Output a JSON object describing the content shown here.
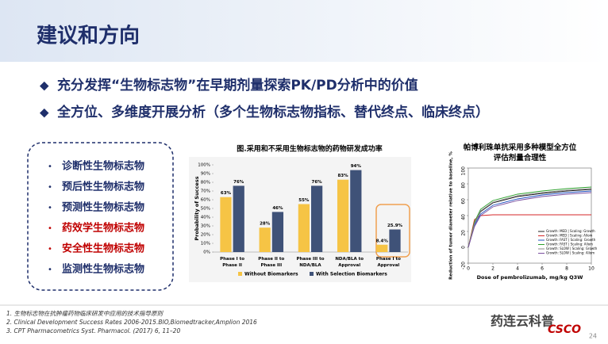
{
  "header": {
    "title": "建议和方向"
  },
  "bullets": [
    "充分发挥“生物标志物”在早期剂量探索PK/PD分析中的价值",
    "全方位、多维度开展分析（多个生物标志物指标、替代终点、临床终点）"
  ],
  "list": {
    "items": [
      {
        "text": "诊断性生物标志物",
        "color": "#1f2f6b"
      },
      {
        "text": "预后性生物标志物",
        "color": "#1f2f6b"
      },
      {
        "text": "预测性生物标志物",
        "color": "#1f2f6b"
      },
      {
        "text": "药效学生物标志物",
        "color": "#c00000"
      },
      {
        "text": "安全性生物标志物",
        "color": "#c00000"
      },
      {
        "text": "监测性生物标志物",
        "color": "#1f2f6b"
      }
    ]
  },
  "chart_data": [
    {
      "type": "bar",
      "title": "图.采用和不采用生物标志物的药物研发成功率",
      "y_label": "Probability of Success",
      "categories": [
        "Phase I to Phase II",
        "Phase II to Phase III",
        "Phase III to NDA/BLA",
        "NDA/BLA to Approval",
        "Phase I to Approval"
      ],
      "series": [
        {
          "name": "Without Biomarkers",
          "color": "#f6c445",
          "values": [
            63,
            28,
            55,
            83,
            8.4
          ],
          "value_labels": [
            "63%",
            "28%",
            "55%",
            "83%",
            "8.4%"
          ]
        },
        {
          "name": "With Selection Biomarkers",
          "color": "#3f5278",
          "values": [
            76,
            46,
            76,
            94,
            25.9
          ],
          "value_labels": [
            "76%",
            "46%",
            "76%",
            "94%",
            "25.9%"
          ]
        }
      ],
      "ylim": [
        0,
        100
      ],
      "yticks": [
        {
          "value": 0,
          "label": "0%"
        },
        {
          "value": 10,
          "label": "10%"
        },
        {
          "value": 20,
          "label": "20%"
        },
        {
          "value": 30,
          "label": "30%"
        },
        {
          "value": 40,
          "label": "40%"
        },
        {
          "value": 50,
          "label": "50%"
        },
        {
          "value": 60,
          "label": "60%"
        },
        {
          "value": 70,
          "label": "70%"
        },
        {
          "value": 80,
          "label": "80%"
        },
        {
          "value": 90,
          "label": "90%"
        },
        {
          "value": 100,
          "label": "100%"
        }
      ]
    },
    {
      "type": "line",
      "title": "帕博利珠单抗采用多种模型全方位评估剂量合理性",
      "x_label": "Dose of pembrolizumab, mg/kg Q3W",
      "y_label": "Reduction of tumor diameter relative to baseline, %",
      "x": [
        0,
        0.5,
        1,
        2,
        4,
        6,
        8,
        10
      ],
      "series": [
        {
          "name": "Growth: MED | Scaling: Growth",
          "color": "#222222",
          "values": [
            0,
            30,
            45,
            56,
            64,
            68,
            71,
            73
          ]
        },
        {
          "name": "Growth: MED | Scaling: Allom",
          "color": "#d62728",
          "values": [
            0,
            35,
            40,
            41,
            41,
            41,
            41,
            41
          ]
        },
        {
          "name": "Growth: FAST | Scaling: Growth",
          "color": "#1f4fbf",
          "values": [
            0,
            28,
            42,
            53,
            61,
            66,
            69,
            71
          ]
        },
        {
          "name": "Growth: FAST | Scaling: Allom",
          "color": "#2ca02c",
          "values": [
            0,
            32,
            48,
            59,
            67,
            71,
            74,
            76
          ]
        },
        {
          "name": "Growth: SLOW | Scaling: Growth",
          "color": "#888888",
          "values": [
            0,
            30,
            46,
            57,
            65,
            69,
            72,
            74
          ]
        },
        {
          "name": "Growth: SLOW | Scaling: Allom",
          "color": "#7b4fa0",
          "values": [
            0,
            26,
            40,
            51,
            59,
            64,
            67,
            69
          ]
        }
      ],
      "xlim": [
        0,
        10
      ],
      "xticks": [
        0,
        2,
        4,
        6,
        8,
        10
      ],
      "ylim": [
        -20,
        100
      ],
      "yticks": [
        -20,
        0,
        20,
        40,
        60,
        80,
        100
      ]
    }
  ],
  "footnotes": [
    "1. 生物标志物在抗肿瘤药物临床研发中应用的技术指导原则",
    "2. Clinical Development Success Rates 2006-2015.BIO,Biomedtracker,Amplion 2016",
    "3. CPT Pharmacometrics Syst. Pharmacol. (2017) 6, 11–20"
  ],
  "footer": {
    "watermark": "药连云科普",
    "logo": "CSCO",
    "page": "24"
  }
}
